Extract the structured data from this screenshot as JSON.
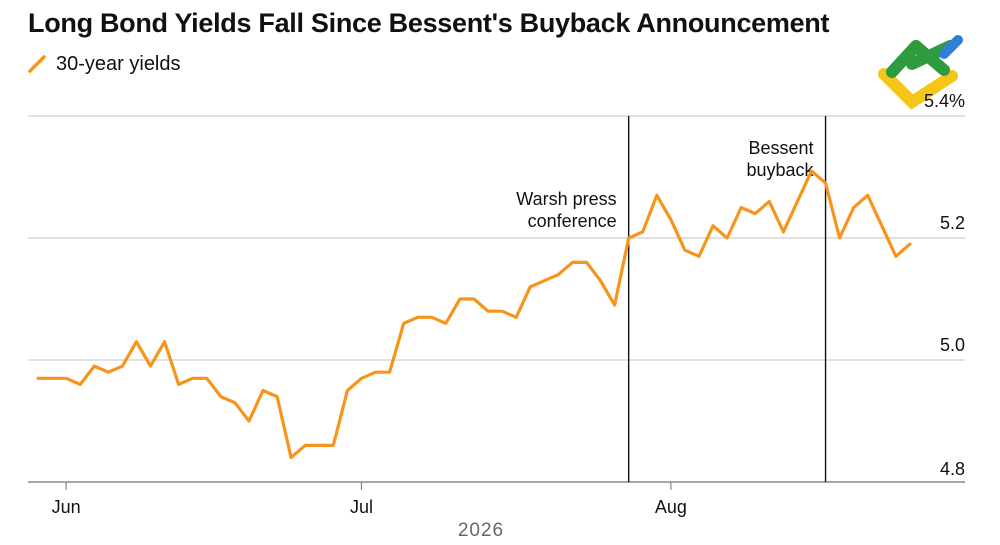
{
  "title": "Long Bond Yields Fall Since Bessent's Buyback Announcement",
  "legend": {
    "label": "30-year yields",
    "color": "#f7941d"
  },
  "logo": {
    "name": "brand-logo",
    "colors": [
      "#2e9b3e",
      "#f5c518",
      "#2f7fd8"
    ]
  },
  "chart_data": {
    "type": "line",
    "title": "Long Bond Yields Fall Since Bessent's Buyback Announcement",
    "xlabel": "2026",
    "ylabel": "",
    "ylim": [
      4.8,
      5.4
    ],
    "y_ticks": [
      {
        "value": 5.4,
        "label": "5.4%"
      },
      {
        "value": 5.2,
        "label": "5.2"
      },
      {
        "value": 5.0,
        "label": "5.0"
      },
      {
        "value": 4.8,
        "label": "4.8"
      }
    ],
    "x_ticks": [
      {
        "index": 2,
        "label": "Jun"
      },
      {
        "index": 23,
        "label": "Jul"
      },
      {
        "index": 45,
        "label": "Aug"
      }
    ],
    "x_extent": [
      0,
      63
    ],
    "grid": "horizontal",
    "legend_position": "top-left",
    "series": [
      {
        "name": "30-year yields",
        "color": "#f7941d",
        "values": [
          4.97,
          4.97,
          4.97,
          4.96,
          4.99,
          4.98,
          4.99,
          5.03,
          4.99,
          5.03,
          4.96,
          4.97,
          4.97,
          4.94,
          4.93,
          4.9,
          4.95,
          4.94,
          4.84,
          4.86,
          4.86,
          4.86,
          4.95,
          4.97,
          4.98,
          4.98,
          5.06,
          5.07,
          5.07,
          5.06,
          5.1,
          5.1,
          5.08,
          5.08,
          5.07,
          5.12,
          5.13,
          5.14,
          5.16,
          5.16,
          5.13,
          5.09,
          5.2,
          5.21,
          5.27,
          5.23,
          5.18,
          5.17,
          5.22,
          5.2,
          5.25,
          5.24,
          5.26,
          5.21,
          5.26,
          5.31,
          5.29,
          5.2,
          5.25,
          5.27,
          5.22,
          5.17,
          5.19
        ]
      }
    ],
    "annotations": [
      {
        "index": 42,
        "lines": [
          "Warsh press",
          "conference"
        ]
      },
      {
        "index": 56,
        "lines": [
          "Bessent",
          "buyback"
        ]
      }
    ]
  }
}
